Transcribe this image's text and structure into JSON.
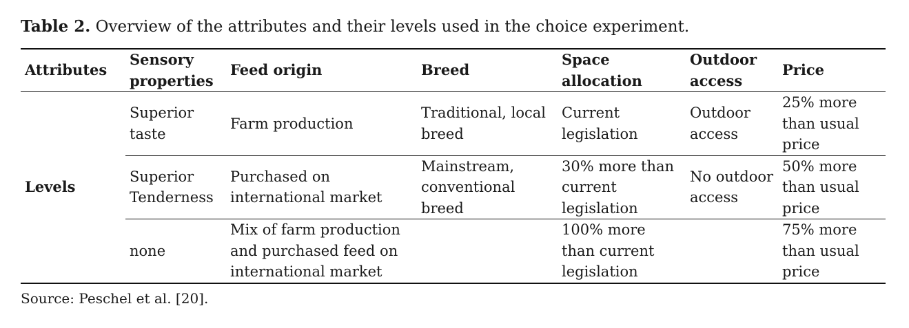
{
  "caption": {
    "label": "Table 2.",
    "text": "Overview of the attributes and their levels used in the choice experiment."
  },
  "table": {
    "headers": [
      "Attributes",
      "Sensory properties",
      "Feed origin",
      "Breed",
      "Space allocation",
      "Outdoor access",
      "Price"
    ],
    "row_header": "Levels",
    "rows": [
      [
        "Superior taste",
        "Farm production",
        "Traditional, local breed",
        "Current legislation",
        "Outdoor access",
        "25% more than usual price"
      ],
      [
        "Superior Tenderness",
        "Purchased on international market",
        "Mainstream, conventional breed",
        "30% more than current legislation",
        "No outdoor access",
        "50% more than usual price"
      ],
      [
        "none",
        "Mix of farm production and purchased feed on international market",
        "",
        "100% more than current legislation",
        "",
        "75% more than usual price"
      ]
    ]
  },
  "source": "Source: Peschel et al. [20]."
}
